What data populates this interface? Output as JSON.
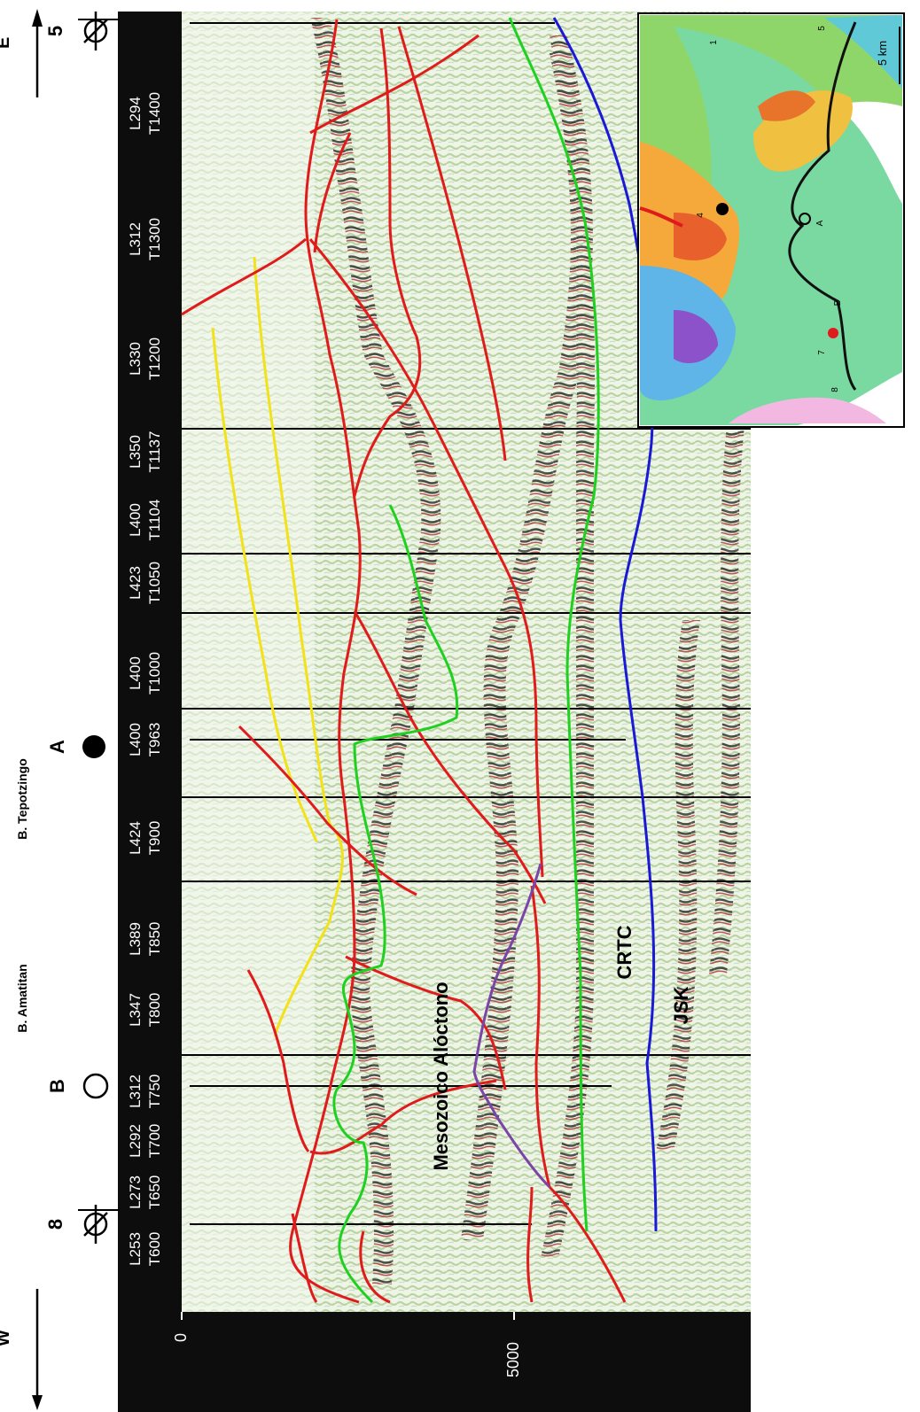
{
  "figure": {
    "direction_west": "W",
    "direction_east": "E",
    "depth_ticks": [
      "0",
      "5000"
    ],
    "track_labels": [
      [
        "L253",
        "T600"
      ],
      [
        "L273",
        "T650"
      ],
      [
        "L292",
        "T700"
      ],
      [
        "L312",
        "T750"
      ],
      [
        "L347",
        "T800"
      ],
      [
        "L389",
        "T850"
      ],
      [
        "L424",
        "T900"
      ],
      [
        "L400",
        "T963"
      ],
      [
        "L400",
        "T1000"
      ],
      [
        "L423",
        "T1050"
      ],
      [
        "L400",
        "T1104"
      ],
      [
        "L350",
        "T1137"
      ],
      [
        "L330",
        "T1200"
      ],
      [
        "L312",
        "T1300"
      ],
      [
        "L294",
        "T1400"
      ]
    ],
    "wells": {
      "w8": "8",
      "w5": "5",
      "wB": "B",
      "wA": "A"
    },
    "basins": {
      "amatitan": "B. Amatitan",
      "tepotzingo": "B. Tepotzingo"
    },
    "units": {
      "mesozoico": "Mesozoico  Alóctono",
      "crtc": "CRTC",
      "jsk": "JSK"
    },
    "inset": {
      "scale_label": "5 km",
      "well_labels": [
        "1",
        "5",
        "4",
        "A",
        "B",
        "7",
        "8"
      ]
    },
    "colors": {
      "fault": "#e01b1b",
      "green_horizon": "#1fd11f",
      "blue_horizon": "#1a1ad6",
      "yellow_horizon": "#f2e21a",
      "purple_horizon": "#7b45a8",
      "seismic_bg": "#cfe2bd"
    }
  }
}
